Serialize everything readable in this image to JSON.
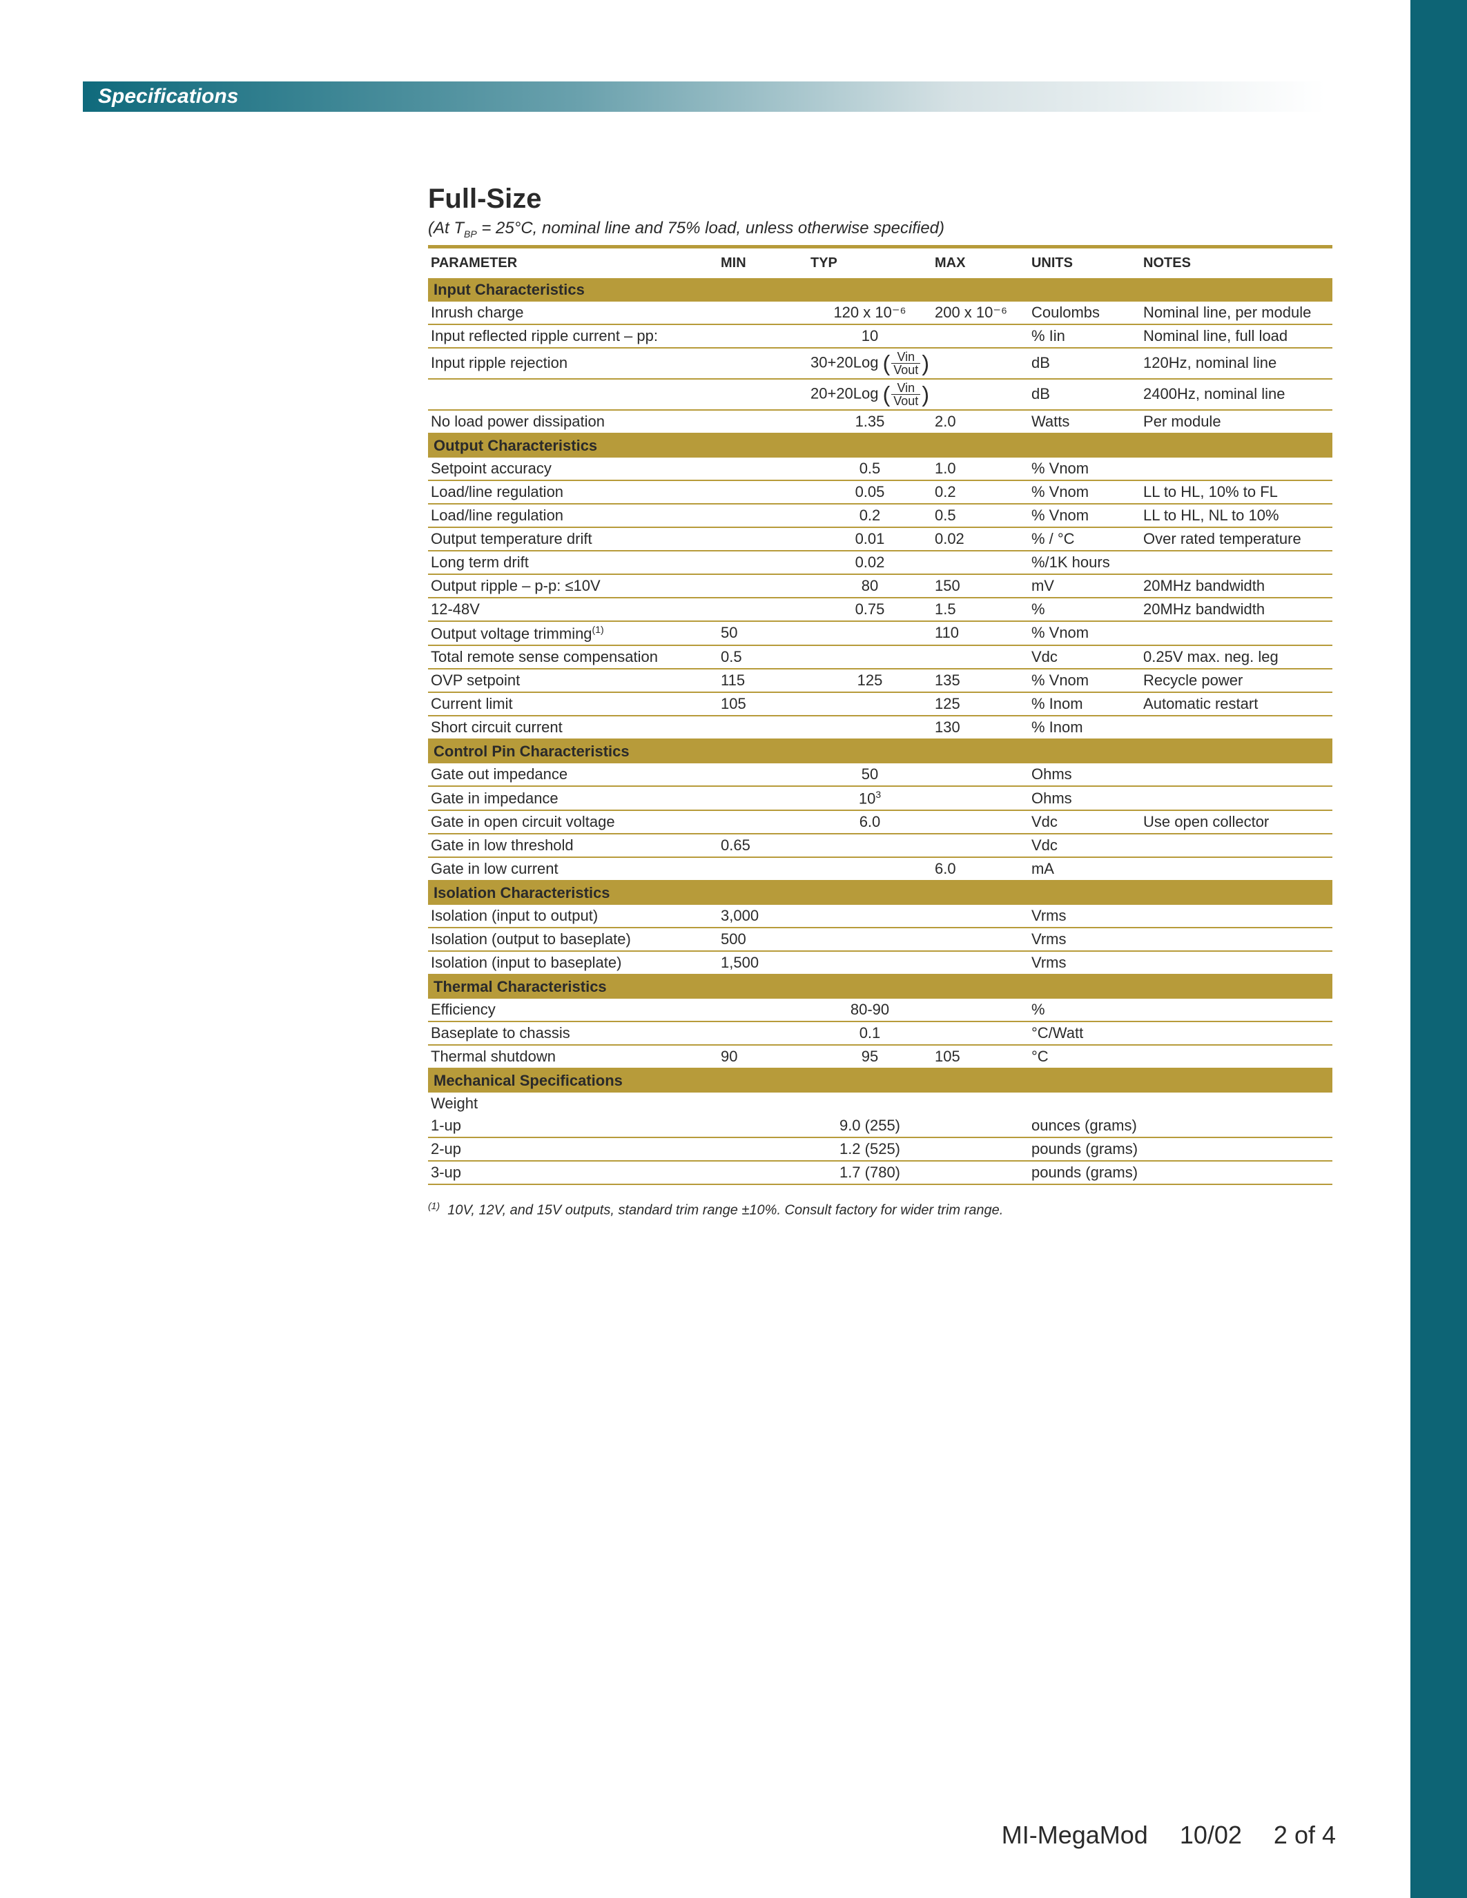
{
  "colors": {
    "sidebar": "#0d6475",
    "gold": "#b79b3a",
    "text": "#2a2a2a",
    "header_gradient_start": "#0f6a7c",
    "header_gradient_end": "#ffffff"
  },
  "header": {
    "title": "Specifications"
  },
  "section": {
    "title": "Full-Size",
    "subtitle": "(At T_BP = 25°C, nominal line and 75% load, unless otherwise specified)"
  },
  "columns": {
    "param": "PARAMETER",
    "min": "MIN",
    "typ": "TYP",
    "max": "MAX",
    "units": "UNITS",
    "notes": "NOTES"
  },
  "groups": [
    {
      "name": "Input Characteristics",
      "rows": [
        {
          "param": "Inrush charge",
          "min": "",
          "typ": "120 x 10⁻⁶",
          "max": "200 x 10⁻⁶",
          "units": "Coulombs",
          "notes": "Nominal line, per module"
        },
        {
          "param": "Input reflected ripple current – pp:",
          "min": "",
          "typ": "10",
          "max": "",
          "units": "% Iin",
          "notes": "Nominal line, full load"
        },
        {
          "param": "Input ripple rejection",
          "min": "",
          "typ_html": "30+20Log <span class='paren'>(</span><span class='frac'><span class='n'>Vin</span><span class='d'>Vout</span></span><span class='paren'>)</span>",
          "max": "",
          "units": "dB",
          "notes": "120Hz, nominal line"
        },
        {
          "param": "",
          "min": "",
          "typ_html": "20+20Log <span class='paren'>(</span><span class='frac'><span class='n'>Vin</span><span class='d'>Vout</span></span><span class='paren'>)</span>",
          "max": "",
          "units": "dB",
          "notes": "2400Hz, nominal line"
        },
        {
          "param": "No load power dissipation",
          "min": "",
          "typ": "1.35",
          "max": "2.0",
          "units": "Watts",
          "notes": "Per module"
        }
      ]
    },
    {
      "name": "Output Characteristics",
      "rows": [
        {
          "param": "Setpoint accuracy",
          "min": "",
          "typ": "0.5",
          "max": "1.0",
          "units": "% Vnom",
          "notes": ""
        },
        {
          "param": "Load/line regulation",
          "min": "",
          "typ": "0.05",
          "max": "0.2",
          "units": "% Vnom",
          "notes": "LL to HL, 10% to FL"
        },
        {
          "param": "Load/line regulation",
          "min": "",
          "typ": "0.2",
          "max": "0.5",
          "units": "% Vnom",
          "notes": "LL to HL, NL to 10%"
        },
        {
          "param": "Output temperature drift",
          "min": "",
          "typ": "0.01",
          "max": "0.02",
          "units": "% / °C",
          "notes": "Over rated temperature"
        },
        {
          "param": "Long term drift",
          "min": "",
          "typ": "0.02",
          "max": "",
          "units": "%/1K hours",
          "notes": ""
        },
        {
          "param": "Output ripple – p-p: ≤10V",
          "min": "",
          "typ": "80",
          "max": "150",
          "units": "mV",
          "notes": "20MHz bandwidth"
        },
        {
          "param": "12-48V",
          "min": "",
          "typ": "0.75",
          "max": "1.5",
          "units": "%",
          "notes": "20MHz bandwidth"
        },
        {
          "param_html": "Output voltage trimming<span class='sup'>(1)</span>",
          "min": "50",
          "typ": "",
          "max": "110",
          "units": "% Vnom",
          "notes": ""
        },
        {
          "param": "Total remote sense compensation",
          "min": "0.5",
          "typ": "",
          "max": "",
          "units": "Vdc",
          "notes": "0.25V max. neg. leg"
        },
        {
          "param": "OVP setpoint",
          "min": "115",
          "typ": "125",
          "max": "135",
          "units": "% Vnom",
          "notes": "Recycle power"
        },
        {
          "param": "Current limit",
          "min": "105",
          "typ": "",
          "max": "125",
          "units": "% Inom",
          "notes": "Automatic restart"
        },
        {
          "param": "Short circuit current",
          "min": "",
          "typ": "",
          "max": "130",
          "units": "% Inom",
          "notes": ""
        }
      ]
    },
    {
      "name": "Control Pin Characteristics",
      "rows": [
        {
          "param": "Gate out impedance",
          "min": "",
          "typ": "50",
          "max": "",
          "units": "Ohms",
          "notes": ""
        },
        {
          "param": "Gate in impedance",
          "min": "",
          "typ_html": "10<span class='sup'>3</span>",
          "max": "",
          "units": "Ohms",
          "notes": ""
        },
        {
          "param": "Gate in open circuit voltage",
          "min": "",
          "typ": "6.0",
          "max": "",
          "units": "Vdc",
          "notes": "Use open collector"
        },
        {
          "param": "Gate in low threshold",
          "min": "0.65",
          "typ": "",
          "max": "",
          "units": "Vdc",
          "notes": ""
        },
        {
          "param": "Gate in low current",
          "min": "",
          "typ": "",
          "max": "6.0",
          "units": "mA",
          "notes": ""
        }
      ]
    },
    {
      "name": "Isolation Characteristics",
      "rows": [
        {
          "param": "Isolation (input to output)",
          "min": "3,000",
          "typ": "",
          "max": "",
          "units": "Vrms",
          "notes": ""
        },
        {
          "param": "Isolation (output to baseplate)",
          "min": "500",
          "typ": "",
          "max": "",
          "units": "Vrms",
          "notes": ""
        },
        {
          "param": "Isolation (input to baseplate)",
          "min": "1,500",
          "typ": "",
          "max": "",
          "units": "Vrms",
          "notes": ""
        }
      ]
    },
    {
      "name": "Thermal Characteristics",
      "rows": [
        {
          "param": "Efficiency",
          "min": "",
          "typ": "80-90",
          "max": "",
          "units": "%",
          "notes": ""
        },
        {
          "param": "Baseplate to chassis",
          "min": "",
          "typ": "0.1",
          "max": "",
          "units": "°C/Watt",
          "notes": ""
        },
        {
          "param": "Thermal shutdown",
          "min": "90",
          "typ": "95",
          "max": "105",
          "units": "°C",
          "notes": ""
        }
      ]
    },
    {
      "name": "Mechanical Specifications",
      "rows": [
        {
          "param": "Weight",
          "min": "",
          "typ": "",
          "max": "",
          "units": "",
          "notes": "",
          "noborder": true
        },
        {
          "param": "1-up",
          "indent": true,
          "min": "",
          "typ": "9.0 (255)",
          "max": "",
          "units": "ounces (grams)",
          "notes": ""
        },
        {
          "param": "2-up",
          "indent": true,
          "min": "",
          "typ": "1.2 (525)",
          "max": "",
          "units": "pounds (grams)",
          "notes": ""
        },
        {
          "param": "3-up",
          "indent": true,
          "min": "",
          "typ": "1.7 (780)",
          "max": "",
          "units": "pounds (grams)",
          "notes": ""
        }
      ]
    }
  ],
  "footnote": {
    "marker": "(1)",
    "text": "10V, 12V, and 15V outputs, standard trim range ±10%. Consult factory for wider trim range."
  },
  "footer": {
    "doc": "MI-MegaMod",
    "date": "10/02",
    "page": "2 of 4"
  }
}
